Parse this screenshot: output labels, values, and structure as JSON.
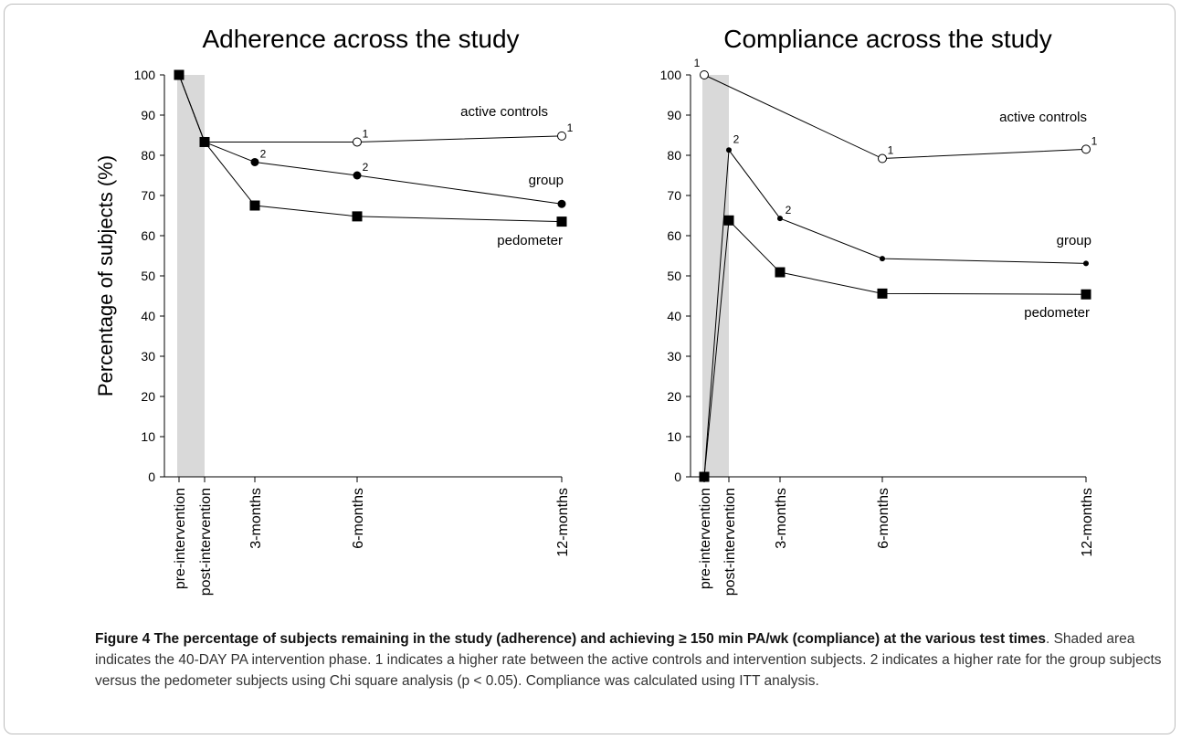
{
  "chart_data": [
    {
      "type": "line",
      "title": "Adherence across the study",
      "xlabel": "",
      "ylabel": "Percentage of subjects (%)",
      "ylim": [
        0,
        100
      ],
      "yticks": [
        "0",
        "10",
        "20",
        "30",
        "40",
        "50",
        "60",
        "70",
        "80",
        "90",
        "100"
      ],
      "categories": [
        "pre-intervention",
        "post-intervention",
        "3-months",
        "6-months",
        "12-months"
      ],
      "shaded_region": [
        "pre-intervention",
        "post-intervention"
      ],
      "series": [
        {
          "name": "active controls",
          "marker": "open-circle",
          "values": [
            100,
            83.3,
            null,
            83.3,
            84.8
          ],
          "annotations": [
            "",
            "",
            "",
            "1",
            "1"
          ]
        },
        {
          "name": "group",
          "marker": "filled-circle",
          "values": [
            100,
            83.3,
            78.3,
            75.0,
            67.9
          ],
          "annotations": [
            "",
            "",
            "2",
            "2",
            ""
          ]
        },
        {
          "name": "pedometer",
          "marker": "filled-square",
          "values": [
            100,
            83.3,
            67.5,
            64.8,
            63.5
          ],
          "annotations": [
            "",
            "",
            "",
            "",
            ""
          ]
        }
      ]
    },
    {
      "type": "line",
      "title": "Compliance across the study",
      "xlabel": "",
      "ylabel": "",
      "ylim": [
        0,
        100
      ],
      "yticks": [
        "0",
        "10",
        "20",
        "30",
        "40",
        "50",
        "60",
        "70",
        "80",
        "90",
        "100"
      ],
      "categories": [
        "pre-intervention",
        "post-intervention",
        "3-months",
        "6-months",
        "12-months"
      ],
      "shaded_region": [
        "pre-intervention",
        "post-intervention"
      ],
      "series": [
        {
          "name": "active controls",
          "marker": "open-circle",
          "values": [
            100,
            null,
            null,
            79.2,
            81.5
          ],
          "annotations": [
            "1",
            "",
            "",
            "1",
            "1"
          ]
        },
        {
          "name": "group",
          "marker": "small-filled-circle",
          "values": [
            0,
            81.3,
            64.3,
            54.3,
            53.1
          ],
          "annotations": [
            "",
            "2",
            "2",
            "",
            ""
          ]
        },
        {
          "name": "pedometer",
          "marker": "filled-square",
          "values": [
            0,
            63.8,
            50.9,
            45.6,
            45.4
          ],
          "annotations": [
            "",
            "",
            "",
            "",
            ""
          ]
        }
      ]
    }
  ],
  "caption": {
    "bold": "Figure 4 The percentage of subjects remaining in the study (adherence) and achieving ≥ 150 min PA/wk (compliance) at the various test times",
    "text": ". Shaded area indicates the 40-DAY PA intervention phase. 1 indicates a higher rate between the active controls and intervention subjects. 2 indicates a higher rate for the group subjects versus the pedometer subjects using Chi square analysis (p < 0.05). Compliance was calculated using ITT analysis."
  }
}
